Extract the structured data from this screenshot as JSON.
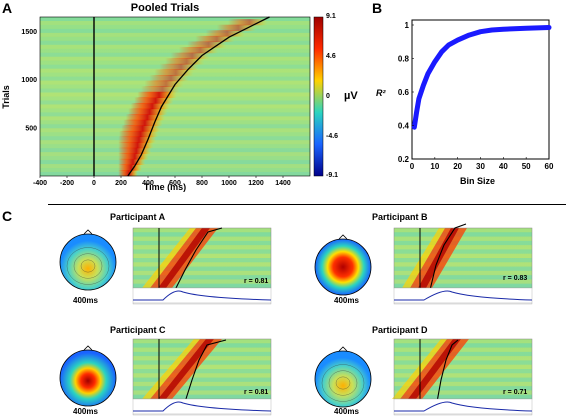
{
  "panels": {
    "A": {
      "letter": "A",
      "title": "Pooled Trials",
      "ylabel": "Trials",
      "xlabel": "Time (ms)",
      "x_ticks": [
        "-400",
        "-200",
        "0",
        "200",
        "400",
        "600",
        "800",
        "1000",
        "1200",
        "1400"
      ],
      "y_ticks": [
        "500",
        "1000",
        "1500"
      ],
      "colorbar": {
        "ticks": [
          "9.1",
          "4.6",
          "0",
          "-4.6",
          "-9.1"
        ],
        "unit": "µV",
        "colors": [
          "#a00000",
          "#ff2a00",
          "#ffd200",
          "#2bd4c0",
          "#1a64ff",
          "#00008a"
        ]
      }
    },
    "B": {
      "letter": "B",
      "xlabel": "Bin Size",
      "ylabel": "R²",
      "x_ticks": [
        "0",
        "10",
        "20",
        "30",
        "40",
        "50",
        "60"
      ],
      "y_ticks": [
        "0.2",
        "0.4",
        "0.6",
        "0.8",
        "1"
      ],
      "line_color": "#1a1aff"
    },
    "C": {
      "letter": "C",
      "participants": [
        {
          "name": "Participant A",
          "r": "r = 0.81",
          "ms": "400ms"
        },
        {
          "name": "Participant B",
          "r": "r = 0.83",
          "ms": "400ms"
        },
        {
          "name": "Participant C",
          "r": "r = 0.81",
          "ms": "400ms"
        },
        {
          "name": "Participant D",
          "r": "r = 0.71",
          "ms": "400ms"
        }
      ]
    }
  },
  "chart_data": [
    {
      "type": "heatmap",
      "title": "Pooled Trials",
      "xlabel": "Time (ms)",
      "ylabel": "Trials",
      "xlim": [
        -400,
        1600
      ],
      "ylim": [
        0,
        1650
      ],
      "colorbar_range": [
        -9.1,
        9.1
      ],
      "colorbar_unit": "µV",
      "rt_curve": {
        "x": [
          250,
          300,
          350,
          400,
          450,
          500,
          600,
          700,
          800,
          1000,
          1200,
          1300
        ],
        "y": [
          0,
          100,
          220,
          380,
          560,
          720,
          950,
          1110,
          1250,
          1440,
          1580,
          1650
        ]
      }
    },
    {
      "type": "line",
      "xlabel": "Bin Size",
      "ylabel": "R²",
      "xlim": [
        0,
        60
      ],
      "ylim": [
        0.2,
        1
      ],
      "x": [
        1,
        2,
        3,
        5,
        7,
        10,
        13,
        16,
        20,
        25,
        30,
        35,
        40,
        50,
        60
      ],
      "y": [
        0.39,
        0.48,
        0.56,
        0.64,
        0.71,
        0.78,
        0.84,
        0.88,
        0.91,
        0.94,
        0.96,
        0.97,
        0.975,
        0.98,
        0.985
      ]
    }
  ]
}
